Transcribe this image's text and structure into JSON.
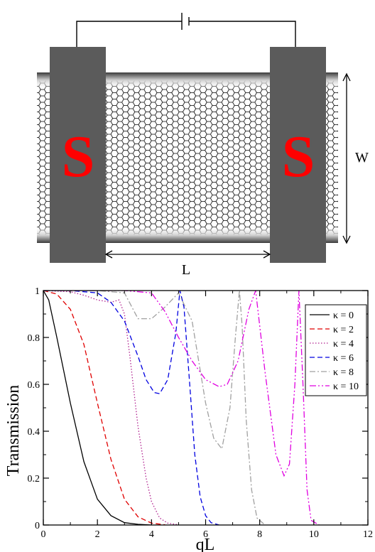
{
  "device": {
    "contact_left_label": "S",
    "contact_right_label": "S",
    "length_label": "L",
    "width_label": "W",
    "colors": {
      "contact": "#5b5b5b",
      "s_letter": "#ff0000",
      "lattice": "#000000",
      "edge_gradient_dark": "#3a3a3a",
      "edge_gradient_light": "#ffffff"
    }
  },
  "chart_data": {
    "type": "line",
    "xlabel": "qL",
    "ylabel": "Transmission",
    "xlim": [
      0,
      12
    ],
    "ylim": [
      0,
      1
    ],
    "x_ticks": [
      "0",
      "2",
      "4",
      "6",
      "8",
      "10",
      "12"
    ],
    "y_ticks": [
      "0",
      "0.2",
      "0.4",
      "0.6",
      "0.8",
      "1"
    ],
    "grid": false,
    "legend_position": "top-right",
    "series": [
      {
        "name": "κ = 0",
        "color": "#000000",
        "dash": "solid",
        "x": [
          0,
          0.2,
          0.5,
          1,
          1.5,
          2,
          2.5,
          3,
          3.5,
          4
        ],
        "y": [
          1,
          0.96,
          0.8,
          0.52,
          0.27,
          0.11,
          0.04,
          0.01,
          0.003,
          0
        ]
      },
      {
        "name": "κ = 2",
        "color": "#e00000",
        "dash": "dashed",
        "x": [
          0,
          0.5,
          1,
          1.5,
          2,
          2.5,
          3,
          3.5,
          4,
          4.5
        ],
        "y": [
          1,
          0.985,
          0.92,
          0.77,
          0.52,
          0.28,
          0.11,
          0.035,
          0.008,
          0.001
        ]
      },
      {
        "name": "κ = 4",
        "color": "#b0208f",
        "dash": "dotted",
        "x": [
          0,
          1,
          1.5,
          2,
          2.5,
          2.8,
          3,
          3.2,
          3.5,
          3.8,
          4,
          4.3,
          4.6,
          5
        ],
        "y": [
          1,
          0.995,
          0.98,
          0.96,
          0.95,
          0.96,
          0.9,
          0.72,
          0.42,
          0.2,
          0.1,
          0.03,
          0.008,
          0.001
        ]
      },
      {
        "name": "κ = 6",
        "color": "#0000e0",
        "dash": "dashed",
        "x": [
          0,
          1,
          2,
          2.5,
          3,
          3.5,
          3.8,
          4.1,
          4.3,
          4.6,
          4.9,
          5.05,
          5.2,
          5.4,
          5.6,
          5.8,
          6,
          6.2,
          6.5
        ],
        "y": [
          1,
          1,
          0.99,
          0.95,
          0.87,
          0.72,
          0.62,
          0.565,
          0.56,
          0.62,
          0.82,
          1,
          0.93,
          0.62,
          0.3,
          0.12,
          0.04,
          0.01,
          0
        ]
      },
      {
        "name": "κ = 8",
        "color": "#a0a0a0",
        "dash": "dashdot",
        "x": [
          0,
          2,
          3,
          3.5,
          4,
          4.5,
          5,
          5.5,
          6,
          6.3,
          6.6,
          6.9,
          7.1,
          7.25,
          7.35,
          7.5,
          7.7,
          7.9,
          8.2
        ],
        "y": [
          1,
          1,
          0.99,
          0.88,
          0.88,
          0.93,
          0.99,
          0.87,
          0.52,
          0.37,
          0.325,
          0.5,
          0.8,
          1,
          0.85,
          0.45,
          0.15,
          0.03,
          0
        ]
      },
      {
        "name": "κ = 10",
        "color": "#e000e0",
        "dash": "dashdotdot",
        "x": [
          0,
          3,
          4,
          4.5,
          5,
          5.5,
          6,
          6.5,
          6.8,
          7.2,
          7.6,
          7.85,
          8.2,
          8.6,
          8.9,
          9.1,
          9.3,
          9.45,
          9.6,
          9.75,
          9.9,
          10.2
        ],
        "y": [
          1,
          1,
          0.99,
          0.91,
          0.8,
          0.7,
          0.62,
          0.59,
          0.6,
          0.7,
          0.92,
          1,
          0.65,
          0.3,
          0.21,
          0.26,
          0.6,
          1,
          0.6,
          0.15,
          0.02,
          0
        ]
      }
    ]
  }
}
